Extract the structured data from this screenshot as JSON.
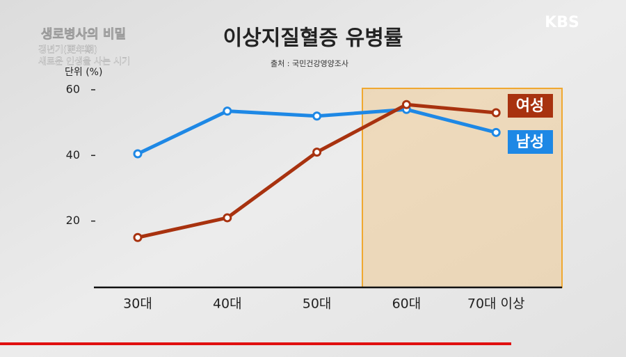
{
  "overlay": {
    "program": "생로병사의 비밀",
    "episode": [
      "갱년기(更年期)",
      "새로운 인생을 사는 시기"
    ],
    "logo": "KBS"
  },
  "chart_data": {
    "type": "line",
    "title": "이상지질혈증 유병률",
    "source": "출처 : 국민건강영양조사",
    "y_label": "단위 (%)",
    "categories": [
      "30대",
      "40대",
      "50대",
      "60대",
      "70대 이상"
    ],
    "series": [
      {
        "name": "남성",
        "color": "#1e88e5",
        "values": [
          40.5,
          53.5,
          52,
          54,
          47
        ]
      },
      {
        "name": "여성",
        "color": "#a8320f",
        "values": [
          15,
          21,
          41,
          55.5,
          53
        ]
      }
    ],
    "ylim": [
      0,
      60
    ],
    "yticks": [
      20,
      40,
      60
    ],
    "grid": false
  }
}
